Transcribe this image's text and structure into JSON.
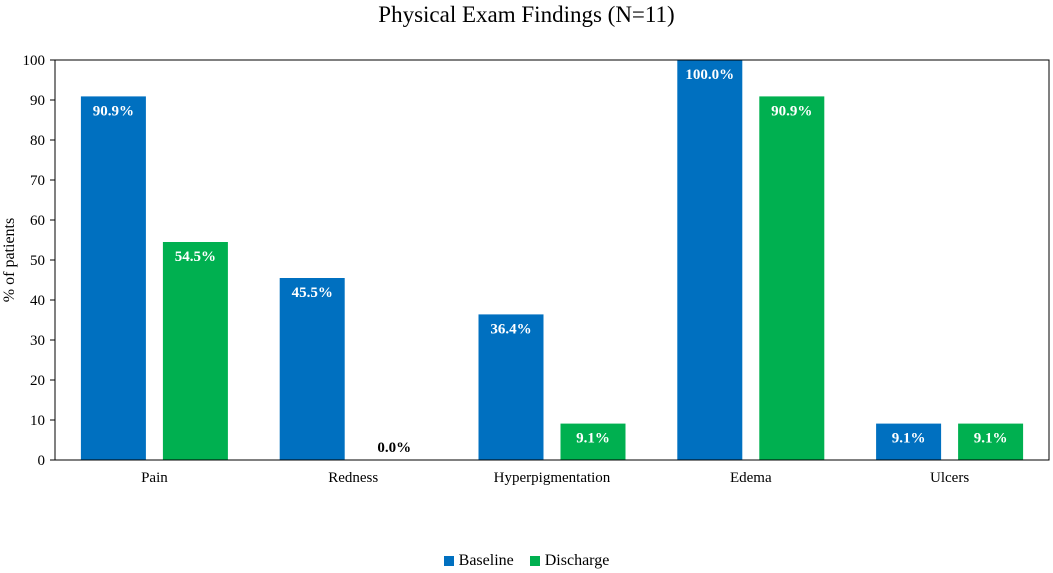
{
  "chart_data": {
    "type": "bar",
    "title": "Physical Exam Findings (N=11)",
    "xlabel": "",
    "ylabel": "% of patients",
    "ylim": [
      0,
      100
    ],
    "yticks": [
      0,
      10,
      20,
      30,
      40,
      50,
      60,
      70,
      80,
      90,
      100
    ],
    "categories": [
      "Pain",
      "Redness",
      "Hyperpigmentation",
      "Edema",
      "Ulcers"
    ],
    "series": [
      {
        "name": "Baseline",
        "color": "#0070C0",
        "values": [
          90.9,
          45.5,
          36.4,
          100.0,
          9.1
        ],
        "labels": [
          "90.9%",
          "45.5%",
          "36.4%",
          "100.0%",
          "9.1%"
        ]
      },
      {
        "name": "Discharge",
        "color": "#00B050",
        "values": [
          54.5,
          0.0,
          9.1,
          90.9,
          9.1
        ],
        "labels": [
          "54.5%",
          "0.0%",
          "9.1%",
          "90.9%",
          "9.1%"
        ]
      }
    ],
    "grid": false,
    "legend_position": "bottom"
  }
}
